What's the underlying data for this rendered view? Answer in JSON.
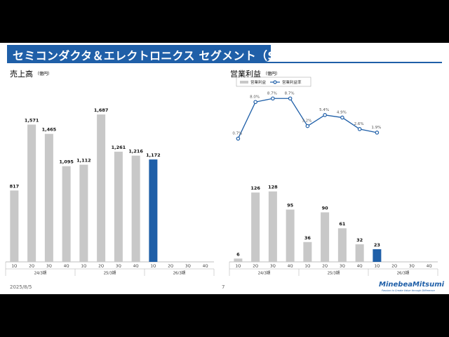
{
  "title": "セミコンダクタ＆エレクトロニクス セグメント（SE）",
  "footer": {
    "date": "2025/8/5",
    "page": "7"
  },
  "logo": {
    "name": "MinebeaMitsumi",
    "tagline": "Passion to Create Value through Difference"
  },
  "colors": {
    "brand": "#1f5fa8",
    "bar": "#c8c8c8",
    "highlight": "#1f5fa8",
    "line": "#1f5fa8"
  },
  "chart_data": [
    {
      "type": "bar",
      "title": "売上高",
      "unit": "（億円）",
      "categories": [
        "1Q",
        "2Q",
        "3Q",
        "4Q",
        "1Q",
        "2Q",
        "3Q",
        "4Q",
        "1Q",
        "2Q",
        "3Q",
        "4Q"
      ],
      "groups": [
        {
          "label": "24/3期",
          "start": 0,
          "count": 4
        },
        {
          "label": "25/3期",
          "start": 4,
          "count": 4
        },
        {
          "label": "26/3期",
          "start": 8,
          "count": 4
        }
      ],
      "values": [
        817,
        1571,
        1465,
        1095,
        1112,
        1687,
        1261,
        1216,
        1172,
        null,
        null,
        null
      ],
      "value_labels": [
        "817",
        "1,571",
        "1,465",
        "1,095",
        "1,112",
        "1,687",
        "1,261",
        "1,216",
        "1,172",
        "",
        "",
        ""
      ],
      "highlight_index": 8,
      "ylim": [
        0,
        1800
      ]
    },
    {
      "type": "bar+line",
      "title": "営業利益",
      "unit": "（億円）",
      "legend": {
        "bar": "営業利益",
        "line": "営業利益率"
      },
      "categories": [
        "1Q",
        "2Q",
        "3Q",
        "4Q",
        "1Q",
        "2Q",
        "3Q",
        "4Q",
        "1Q",
        "2Q",
        "3Q",
        "4Q"
      ],
      "groups": [
        {
          "label": "24/3期",
          "start": 0,
          "count": 4
        },
        {
          "label": "25/3期",
          "start": 4,
          "count": 4
        },
        {
          "label": "26/3期",
          "start": 8,
          "count": 4
        }
      ],
      "values": [
        6,
        126,
        128,
        95,
        36,
        90,
        61,
        32,
        23,
        null,
        null,
        null
      ],
      "value_labels": [
        "6",
        "126",
        "128",
        "95",
        "36",
        "90",
        "61",
        "32",
        "23",
        "",
        "",
        ""
      ],
      "highlight_index": 8,
      "ylim": [
        0,
        250
      ],
      "margin": [
        0.7,
        8.0,
        8.7,
        8.7,
        3.2,
        5.4,
        4.9,
        2.6,
        1.9,
        null,
        null,
        null
      ],
      "margin_labels": [
        "0.7%",
        "8.0%",
        "8.7%",
        "8.7%",
        "3.2%",
        "5.4%",
        "4.9%",
        "2.6%",
        "1.9%",
        "",
        "",
        ""
      ],
      "margin_ylim": [
        -4.0,
        10.0
      ]
    }
  ]
}
